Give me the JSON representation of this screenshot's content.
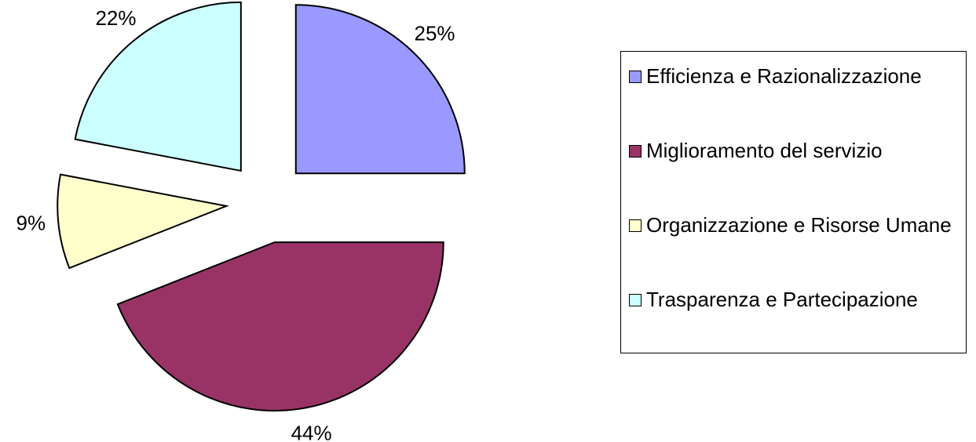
{
  "chart_data": {
    "type": "pie",
    "categories": [
      "Efficienza e Razionalizzazione",
      "Miglioramento del servizio",
      "Organizzazione e Risorse Umane",
      "Trasparenza e Partecipazione"
    ],
    "values": [
      25,
      44,
      9,
      22
    ],
    "value_labels": [
      "25%",
      "44%",
      "9%",
      "22%"
    ],
    "colors": [
      "#9999ff",
      "#993366",
      "#ffffcc",
      "#ccffff"
    ],
    "legend": "right"
  }
}
